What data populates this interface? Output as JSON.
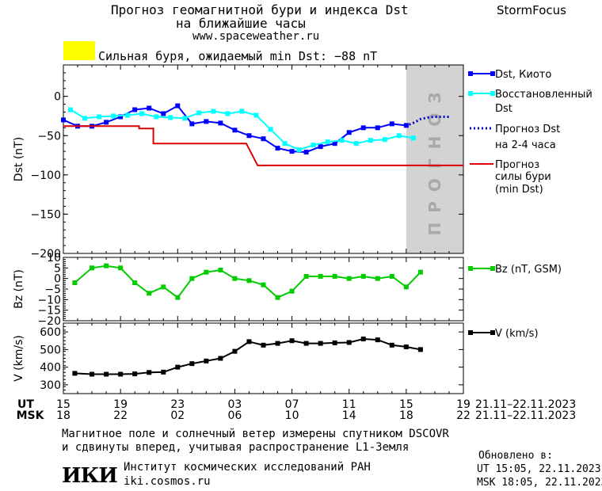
{
  "header": {
    "title_line1": "Прогноз геомагнитной бури и индекса Dst",
    "title_line2": "на ближайшие часы",
    "url": "www.spaceweather.ru",
    "brand": "StormFocus",
    "alert_color": "#ffff00",
    "alert_text": "Сильная буря, ожидаемый min Dst: −88 nT"
  },
  "footer": {
    "caption_line1": "Магнитное поле и солнечный ветер измерены спутником DSCOVR",
    "caption_line2": "и сдвинуты вперед, учитывая распространение L1-Земля",
    "institute": "Институт космических исследований РАН",
    "institute_url": "iki.cosmos.ru",
    "logo_text": "ИКИ",
    "updated_label": "Обновлено в:",
    "updated_ut": "UT  15:05, 22.11.2023",
    "updated_msk": "MSK 18:05, 22.11.2023"
  },
  "chart_data": {
    "type": "line",
    "x_axis": {
      "ut_label": "UT",
      "msk_label": "MSK",
      "ut_ticks": [
        "15",
        "19",
        "23",
        "03",
        "07",
        "11",
        "15",
        "19"
      ],
      "msk_ticks": [
        "18",
        "22",
        "02",
        "06",
        "10",
        "14",
        "18",
        "22"
      ],
      "tick_hours": [
        0,
        4,
        8,
        12,
        16,
        20,
        24,
        28
      ],
      "range_hours": [
        0,
        28
      ],
      "date_range_ut": "21.11–22.11.2023",
      "date_range_msk": "21.11–22.11.2023"
    },
    "forecast_band": {
      "from_hour": 24,
      "to_hour": 28,
      "label": "ПРОГНОЗ",
      "color": "#d3d3d3"
    },
    "panels": [
      {
        "id": "dst",
        "ylabel": "Dst (nT)",
        "ylim": [
          -200,
          40
        ],
        "yticks": [
          0,
          -50,
          -100,
          -150,
          -200
        ],
        "ytick_labels": [
          "0",
          "−50",
          "−100",
          "−150",
          "−200"
        ],
        "series": [
          {
            "name": "Dst, Киото",
            "color": "#0000ff",
            "style": "line-square",
            "x": [
              0,
              1,
              2,
              3,
              4,
              5,
              6,
              7,
              8,
              9,
              10,
              11,
              12,
              13,
              14,
              15,
              16,
              17,
              18,
              19,
              20,
              21,
              22,
              23,
              24
            ],
            "y": [
              -30,
              -38,
              -38,
              -33,
              -26,
              -17,
              -15,
              -22,
              -12,
              -35,
              -32,
              -34,
              -43,
              -50,
              -54,
              -66,
              -70,
              -71,
              -64,
              -60,
              -46,
              -40,
              -40,
              -35,
              -37
            ]
          },
          {
            "name": "Восстановленный Dst",
            "color": "#00ffff",
            "style": "line-square",
            "x": [
              0.5,
              1.5,
              2.5,
              3.5,
              4.5,
              5.5,
              6.5,
              7.5,
              8.5,
              9.5,
              10.5,
              11.5,
              12.5,
              13.5,
              14.5,
              15.5,
              16.5,
              17.5,
              18.5,
              19.5,
              20.5,
              21.5,
              22.5,
              23.5,
              24.5
            ],
            "y": [
              -17,
              -28,
              -26,
              -25,
              -24,
              -22,
              -26,
              -27,
              -28,
              -21,
              -19,
              -22,
              -19,
              -24,
              -42,
              -60,
              -68,
              -62,
              -58,
              -56,
              -60,
              -56,
              -55,
              -50,
              -53
            ]
          },
          {
            "name": "Прогноз Dst на 2-4 часа",
            "color": "#0000cc",
            "style": "dotted",
            "x": [
              24.2,
              24.6,
              25,
              25.5,
              26,
              26.5,
              27
            ],
            "y": [
              -36,
              -33,
              -29,
              -27,
              -26,
              -26,
              -26
            ]
          },
          {
            "name": "Прогноз силы бури (min Dst)",
            "color": "#dd0000",
            "style": "step",
            "x": [
              0,
              5,
              6,
              7,
              8,
              9,
              10,
              11,
              12,
              13,
              14,
              15,
              16,
              17,
              18,
              19,
              20,
              21,
              22,
              23,
              24,
              25,
              26,
              27,
              28
            ],
            "y": [
              -38,
              -38,
              -41,
              -60,
              -60,
              -60,
              -60,
              -60,
              -60,
              -88,
              -88,
              -88,
              -88,
              -88,
              -88,
              -88,
              -88,
              -88,
              -88,
              -88,
              -88,
              -88,
              -88,
              -88,
              -88
            ],
            "steps": [
              [
                0,
                -38
              ],
              [
                5.3,
                -38
              ],
              [
                5.3,
                -41
              ],
              [
                6.3,
                -41
              ],
              [
                6.3,
                -60
              ],
              [
                12.8,
                -60
              ],
              [
                12.8,
                -60
              ],
              [
                13.6,
                -88
              ],
              [
                28,
                -88
              ]
            ]
          }
        ]
      },
      {
        "id": "bz",
        "ylabel": "Bz (nT)",
        "ylim": [
          -20,
          10
        ],
        "yticks": [
          10,
          5,
          0,
          -5,
          -10,
          -15,
          -20
        ],
        "ytick_labels": [
          "10",
          "5",
          "0",
          "−5",
          "−10",
          "−15",
          "−20"
        ],
        "series": [
          {
            "name": "Bz (nT, GSM)",
            "color": "#00cc00",
            "style": "line-square",
            "x": [
              0.8,
              2,
              3,
              4,
              5,
              6,
              7,
              8,
              9,
              10,
              11,
              12,
              13,
              14,
              15,
              16,
              17,
              18,
              19,
              20,
              21,
              22,
              23,
              24,
              25
            ],
            "y": [
              -2,
              5,
              6,
              5,
              -2,
              -7,
              -4,
              -9,
              0,
              3,
              4,
              0,
              -1,
              -3,
              -9,
              -6,
              1,
              1,
              1,
              0,
              1,
              0,
              1,
              -4,
              3
            ]
          }
        ]
      },
      {
        "id": "v",
        "ylabel": "V (km/s)",
        "ylim": [
          250,
          650
        ],
        "yticks": [
          600,
          500,
          400,
          300
        ],
        "ytick_labels": [
          "600",
          "500",
          "400",
          "300"
        ],
        "series": [
          {
            "name": "V (km/s)",
            "color": "#000000",
            "style": "line-square",
            "x": [
              0.8,
              2,
              3,
              4,
              5,
              6,
              7,
              8,
              9,
              10,
              11,
              12,
              13,
              14,
              15,
              16,
              17,
              18,
              19,
              20,
              21,
              22,
              23,
              24,
              25
            ],
            "y": [
              365,
              360,
              360,
              360,
              362,
              370,
              372,
              400,
              420,
              435,
              450,
              490,
              545,
              525,
              535,
              550,
              535,
              535,
              538,
              540,
              560,
              555,
              525,
              515,
              500
            ]
          }
        ]
      }
    ]
  }
}
